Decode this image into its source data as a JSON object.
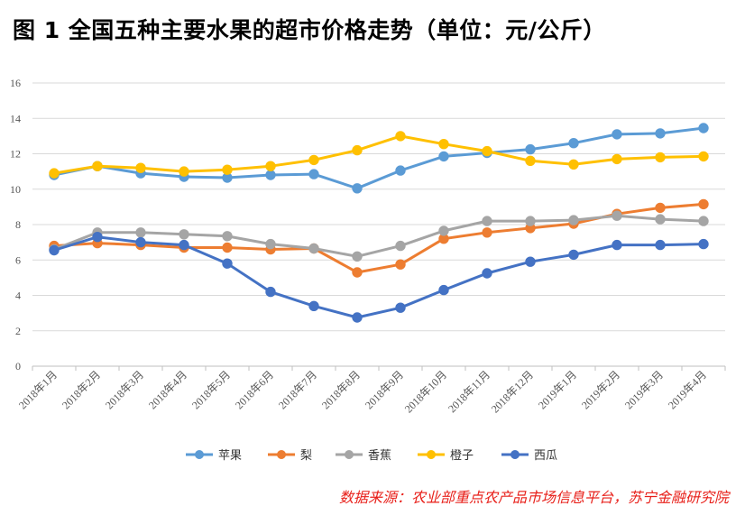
{
  "title": "图 1  全国五种主要水果的超市价格走势（单位：元/公斤）",
  "source": "数据来源：农业部重点农产品市场信息平台，苏宁金融研究院",
  "chart_data": {
    "type": "line",
    "title": "图 1  全国五种主要水果的超市价格走势（单位：元/公斤）",
    "xlabel": "",
    "ylabel": "",
    "ylim": [
      0,
      16
    ],
    "yticks": [
      0,
      2,
      4,
      6,
      8,
      10,
      12,
      14,
      16
    ],
    "grid": true,
    "legend_position": "bottom",
    "categories": [
      "2018年1月",
      "2018年2月",
      "2018年3月",
      "2018年4月",
      "2018年5月",
      "2018年6月",
      "2018年7月",
      "2018年8月",
      "2018年9月",
      "2018年10月",
      "2018年11月",
      "2018年12月",
      "2019年1月",
      "2019年2月",
      "2019年3月",
      "2019年4月"
    ],
    "series": [
      {
        "name": "苹果",
        "color": "#5b9bd5",
        "values": [
          10.8,
          11.3,
          10.9,
          10.7,
          10.65,
          10.8,
          10.85,
          10.05,
          11.05,
          11.85,
          12.05,
          12.25,
          12.6,
          13.1,
          13.15,
          13.45
        ]
      },
      {
        "name": "梨",
        "color": "#ed7d31",
        "values": [
          6.8,
          6.95,
          6.85,
          6.7,
          6.7,
          6.6,
          6.65,
          5.3,
          5.75,
          7.2,
          7.55,
          7.8,
          8.05,
          8.6,
          8.95,
          9.15
        ]
      },
      {
        "name": "香蕉",
        "color": "#a5a5a5",
        "values": [
          6.6,
          7.55,
          7.55,
          7.45,
          7.35,
          6.9,
          6.65,
          6.2,
          6.8,
          7.65,
          8.2,
          8.2,
          8.25,
          8.5,
          8.3,
          8.2
        ]
      },
      {
        "name": "橙子",
        "color": "#ffc000",
        "values": [
          10.9,
          11.3,
          11.2,
          11.0,
          11.1,
          11.3,
          11.65,
          12.2,
          13.0,
          12.55,
          12.15,
          11.6,
          11.4,
          11.7,
          11.8,
          11.85
        ]
      },
      {
        "name": "西瓜",
        "color": "#4472c4",
        "values": [
          6.55,
          7.3,
          7.0,
          6.85,
          5.8,
          4.2,
          3.4,
          2.75,
          3.3,
          4.3,
          5.25,
          5.9,
          6.3,
          6.85,
          6.85,
          6.9
        ]
      }
    ]
  }
}
